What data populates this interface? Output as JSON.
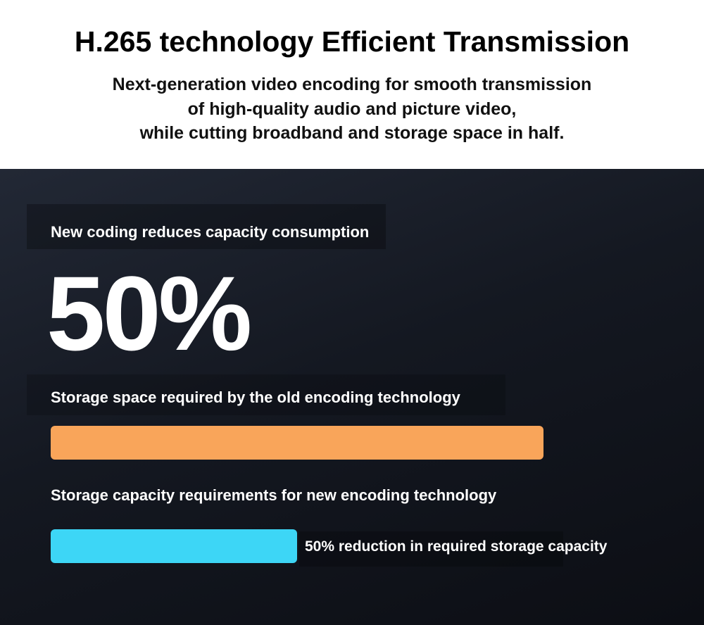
{
  "header": {
    "title": "H.265 technology Efficient Transmission",
    "subtitle": [
      "Next-generation video encoding for smooth transmission",
      "of high-quality audio and picture video,",
      "while cutting broadband and storage space in half."
    ]
  },
  "panel": {
    "label": "New coding reduces capacity consumption",
    "big_value": "50%",
    "items": [
      {
        "label": "Storage space required by the old encoding technology"
      },
      {
        "label": "Storage capacity requirements for new encoding technology",
        "note": "50% reduction in required storage capacity"
      }
    ]
  }
}
